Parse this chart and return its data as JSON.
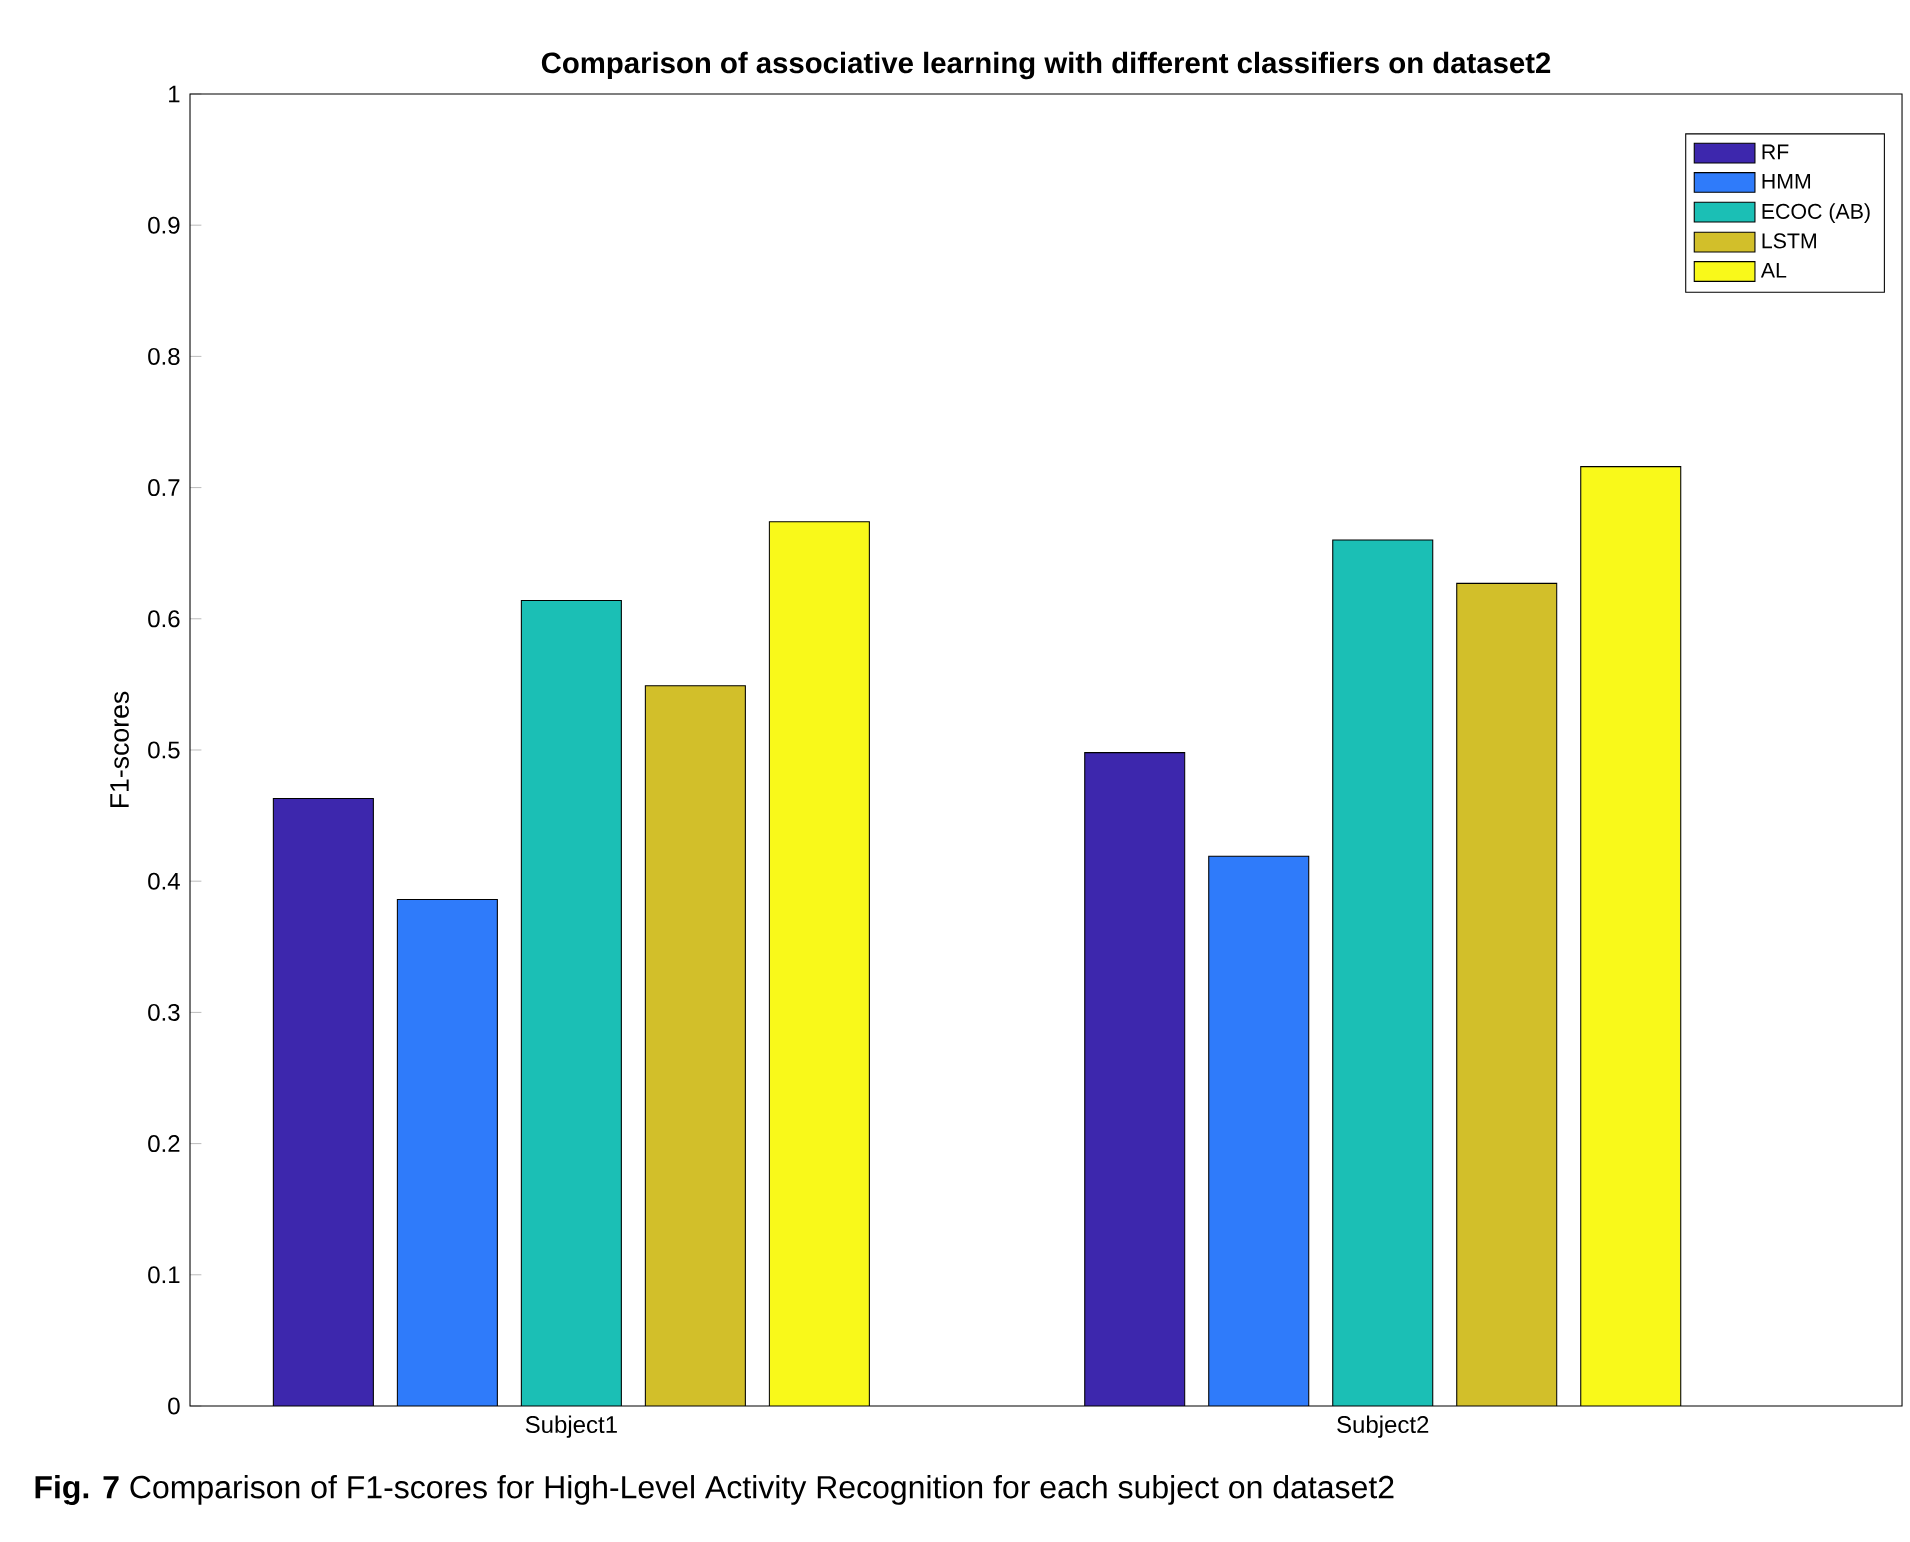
{
  "chart_data": {
    "type": "bar",
    "title": "Comparison of associative learning with different classifiers on dataset2",
    "ylabel": "F1-scores",
    "categories": [
      "Subject1",
      "Subject2"
    ],
    "series": [
      {
        "name": "RF",
        "color": "#3d27ad",
        "values": [
          0.463,
          0.498
        ]
      },
      {
        "name": "HMM",
        "color": "#2f7bfa",
        "values": [
          0.386,
          0.419
        ]
      },
      {
        "name": "ECOC (AB)",
        "color": "#1bbfb5",
        "values": [
          0.614,
          0.66
        ]
      },
      {
        "name": "LSTM",
        "color": "#d2bf2a",
        "values": [
          0.549,
          0.627
        ]
      },
      {
        "name": "AL",
        "color": "#f9f91a",
        "values": [
          0.674,
          0.716
        ]
      }
    ],
    "ylim": [
      0,
      1
    ],
    "yticks": [
      0,
      0.1,
      0.2,
      0.3,
      0.4,
      0.5,
      0.6,
      0.7,
      0.8,
      0.9,
      1
    ],
    "grid": false,
    "legend": "top right",
    "annotations": [
      "**Fig. 7** Comparison of F1-scores for High-Level Activity Recognition for each subject on dataset2"
    ]
  }
}
